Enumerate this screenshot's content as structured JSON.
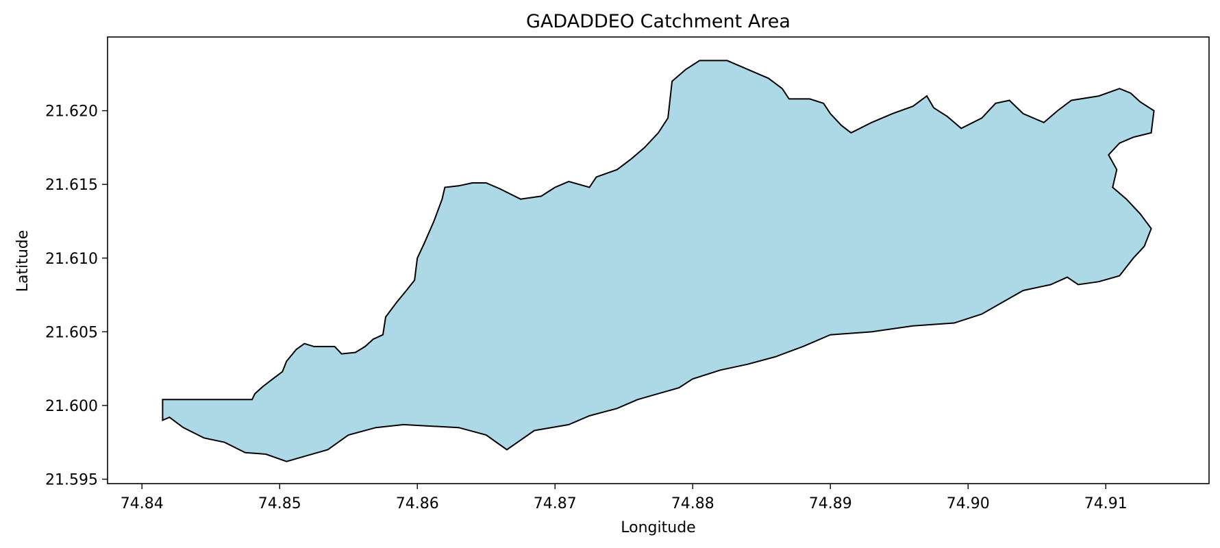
{
  "chart_data": {
    "type": "area",
    "title": "GADADDEO Catchment Area",
    "xlabel": "Longitude",
    "ylabel": "Latitude",
    "xlim": [
      74.8375,
      74.9175
    ],
    "ylim": [
      21.5947,
      21.625
    ],
    "x_ticks": [
      74.84,
      74.85,
      74.86,
      74.87,
      74.88,
      74.89,
      74.9,
      74.91
    ],
    "x_tick_labels": [
      "74.84",
      "74.85",
      "74.86",
      "74.87",
      "74.88",
      "74.89",
      "74.90",
      "74.91"
    ],
    "y_ticks": [
      21.595,
      21.6,
      21.605,
      21.61,
      21.615,
      21.62
    ],
    "y_tick_labels": [
      "21.595",
      "21.600",
      "21.605",
      "21.610",
      "21.615",
      "21.620"
    ],
    "grid": false,
    "fill_color": "#add8e6",
    "edge_color": "#000000",
    "polygon": [
      [
        74.8415,
        21.6004
      ],
      [
        74.848,
        21.6004
      ],
      [
        74.8482,
        21.6008
      ],
      [
        74.8488,
        21.6013
      ],
      [
        74.8495,
        21.6018
      ],
      [
        74.8502,
        21.6023
      ],
      [
        74.8505,
        21.603
      ],
      [
        74.8512,
        21.6038
      ],
      [
        74.8518,
        21.6042
      ],
      [
        74.8525,
        21.604
      ],
      [
        74.854,
        21.604
      ],
      [
        74.8545,
        21.6035
      ],
      [
        74.8555,
        21.6036
      ],
      [
        74.8562,
        21.604
      ],
      [
        74.8568,
        21.6045
      ],
      [
        74.8575,
        21.6048
      ],
      [
        74.8577,
        21.606
      ],
      [
        74.8585,
        21.607
      ],
      [
        74.8592,
        21.6078
      ],
      [
        74.8598,
        21.6085
      ],
      [
        74.86,
        21.61
      ],
      [
        74.8605,
        21.611
      ],
      [
        74.8612,
        21.6125
      ],
      [
        74.8618,
        21.614
      ],
      [
        74.862,
        21.6148
      ],
      [
        74.863,
        21.6149
      ],
      [
        74.864,
        21.6151
      ],
      [
        74.865,
        21.6151
      ],
      [
        74.866,
        21.6147
      ],
      [
        74.8675,
        21.614
      ],
      [
        74.869,
        21.6142
      ],
      [
        74.87,
        21.6148
      ],
      [
        74.871,
        21.6152
      ],
      [
        74.8725,
        21.6148
      ],
      [
        74.873,
        21.6155
      ],
      [
        74.8745,
        21.616
      ],
      [
        74.8755,
        21.6167
      ],
      [
        74.8765,
        21.6175
      ],
      [
        74.8775,
        21.6185
      ],
      [
        74.8782,
        21.6195
      ],
      [
        74.8785,
        21.622
      ],
      [
        74.8795,
        21.6228
      ],
      [
        74.8805,
        21.6234
      ],
      [
        74.8825,
        21.6234
      ],
      [
        74.884,
        21.6228
      ],
      [
        74.8855,
        21.6222
      ],
      [
        74.8865,
        21.6215
      ],
      [
        74.887,
        21.6208
      ],
      [
        74.8885,
        21.6208
      ],
      [
        74.8895,
        21.6205
      ],
      [
        74.89,
        21.6198
      ],
      [
        74.8908,
        21.619
      ],
      [
        74.8915,
        21.6185
      ],
      [
        74.893,
        21.6192
      ],
      [
        74.8945,
        21.6198
      ],
      [
        74.896,
        21.6203
      ],
      [
        74.897,
        21.621
      ],
      [
        74.8975,
        21.6202
      ],
      [
        74.8985,
        21.6196
      ],
      [
        74.8995,
        21.6188
      ],
      [
        74.901,
        21.6195
      ],
      [
        74.902,
        21.6205
      ],
      [
        74.903,
        21.6207
      ],
      [
        74.904,
        21.6198
      ],
      [
        74.9055,
        21.6192
      ],
      [
        74.9065,
        21.62
      ],
      [
        74.9075,
        21.6207
      ],
      [
        74.9095,
        21.621
      ],
      [
        74.911,
        21.6215
      ],
      [
        74.9118,
        21.6212
      ],
      [
        74.9125,
        21.6206
      ],
      [
        74.9135,
        21.62
      ],
      [
        74.9133,
        21.6185
      ],
      [
        74.912,
        21.6182
      ],
      [
        74.911,
        21.6178
      ],
      [
        74.9102,
        21.617
      ],
      [
        74.9108,
        21.616
      ],
      [
        74.9105,
        21.6148
      ],
      [
        74.9115,
        21.614
      ],
      [
        74.9125,
        21.613
      ],
      [
        74.9133,
        21.612
      ],
      [
        74.9128,
        21.6108
      ],
      [
        74.912,
        21.61
      ],
      [
        74.911,
        21.6088
      ],
      [
        74.9095,
        21.6084
      ],
      [
        74.908,
        21.6082
      ],
      [
        74.9072,
        21.6087
      ],
      [
        74.906,
        21.6082
      ],
      [
        74.904,
        21.6078
      ],
      [
        74.9025,
        21.607
      ],
      [
        74.901,
        21.6062
      ],
      [
        74.899,
        21.6056
      ],
      [
        74.896,
        21.6054
      ],
      [
        74.893,
        21.605
      ],
      [
        74.89,
        21.6048
      ],
      [
        74.888,
        21.604
      ],
      [
        74.886,
        21.6033
      ],
      [
        74.884,
        21.6028
      ],
      [
        74.882,
        21.6024
      ],
      [
        74.88,
        21.6018
      ],
      [
        74.879,
        21.6012
      ],
      [
        74.8775,
        21.6008
      ],
      [
        74.876,
        21.6004
      ],
      [
        74.8745,
        21.5998
      ],
      [
        74.8725,
        21.5993
      ],
      [
        74.871,
        21.5987
      ],
      [
        74.8685,
        21.5983
      ],
      [
        74.8665,
        21.597
      ],
      [
        74.865,
        21.598
      ],
      [
        74.863,
        21.5985
      ],
      [
        74.861,
        21.5986
      ],
      [
        74.859,
        21.5987
      ],
      [
        74.857,
        21.5985
      ],
      [
        74.855,
        21.598
      ],
      [
        74.8535,
        21.597
      ],
      [
        74.852,
        21.5966
      ],
      [
        74.8505,
        21.5962
      ],
      [
        74.849,
        21.5967
      ],
      [
        74.8475,
        21.5968
      ],
      [
        74.846,
        21.5975
      ],
      [
        74.8445,
        21.5978
      ],
      [
        74.843,
        21.5985
      ],
      [
        74.842,
        21.5992
      ],
      [
        74.8415,
        21.599
      ]
    ]
  }
}
